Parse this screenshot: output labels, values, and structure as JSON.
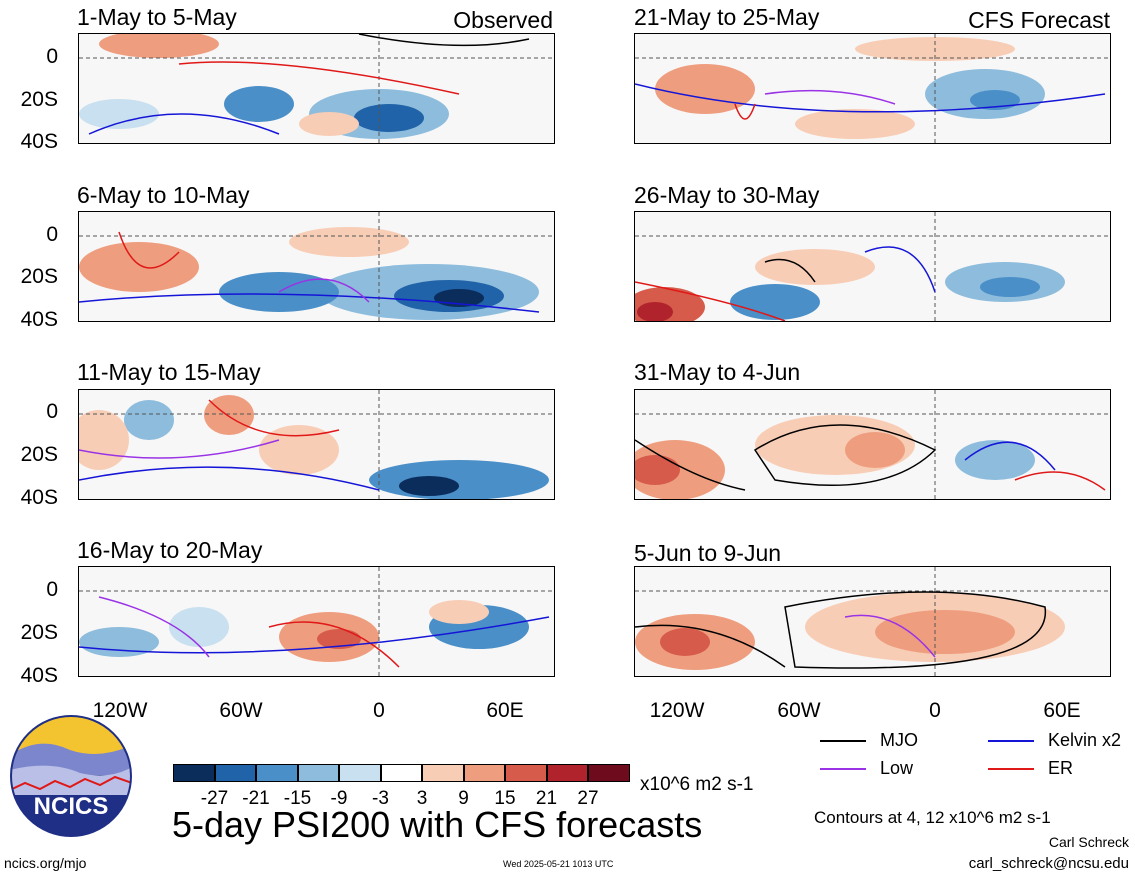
{
  "panels_left": [
    {
      "title": "1-May to 5-May",
      "tag": "Observed"
    },
    {
      "title": "6-May to 10-May",
      "tag": ""
    },
    {
      "title": "11-May to 15-May",
      "tag": ""
    },
    {
      "title": "16-May to 20-May",
      "tag": ""
    }
  ],
  "panels_right": [
    {
      "title": "21-May to 25-May",
      "tag": "CFS Forecast"
    },
    {
      "title": "26-May to 30-May",
      "tag": ""
    },
    {
      "title": "31-May to 4-Jun",
      "tag": ""
    },
    {
      "title": "5-Jun to 9-Jun",
      "tag": ""
    }
  ],
  "lat_labels": [
    "0",
    "20S",
    "40S"
  ],
  "lon_labels": [
    "120W",
    "60W",
    "0",
    "60E"
  ],
  "legend": {
    "mjo": "MJO",
    "kelvin": "Kelvin x2",
    "low": "Low",
    "er": "ER",
    "colors": {
      "mjo": "#000000",
      "kelvin": "#1515d8",
      "low": "#9a32e6",
      "er": "#e01818"
    }
  },
  "colorbar": {
    "colors": [
      "#0b2d5c",
      "#2163a8",
      "#4a8fc8",
      "#8dbcdc",
      "#c8e0ef",
      "#ffffff",
      "#f8cdb6",
      "#ee9e7f",
      "#d65b4b",
      "#b0222c",
      "#6e0b1d"
    ],
    "ticks": [
      "-27",
      "-21",
      "-15",
      "-9",
      "-3",
      "3",
      "9",
      "15",
      "21",
      "27"
    ],
    "units": "x10^6 m2 s-1"
  },
  "main_title": "5-day PSI200 with CFS forecasts",
  "contours_note": "Contours at 4, 12 x10^6 m2 s-1",
  "author": "Carl Schreck",
  "email": "carl_schreck@ncsu.edu",
  "site": "ncics.org/mjo",
  "timestamp": "Wed 2025-05-21 1013 UTC",
  "logo_text": "NCICS"
}
